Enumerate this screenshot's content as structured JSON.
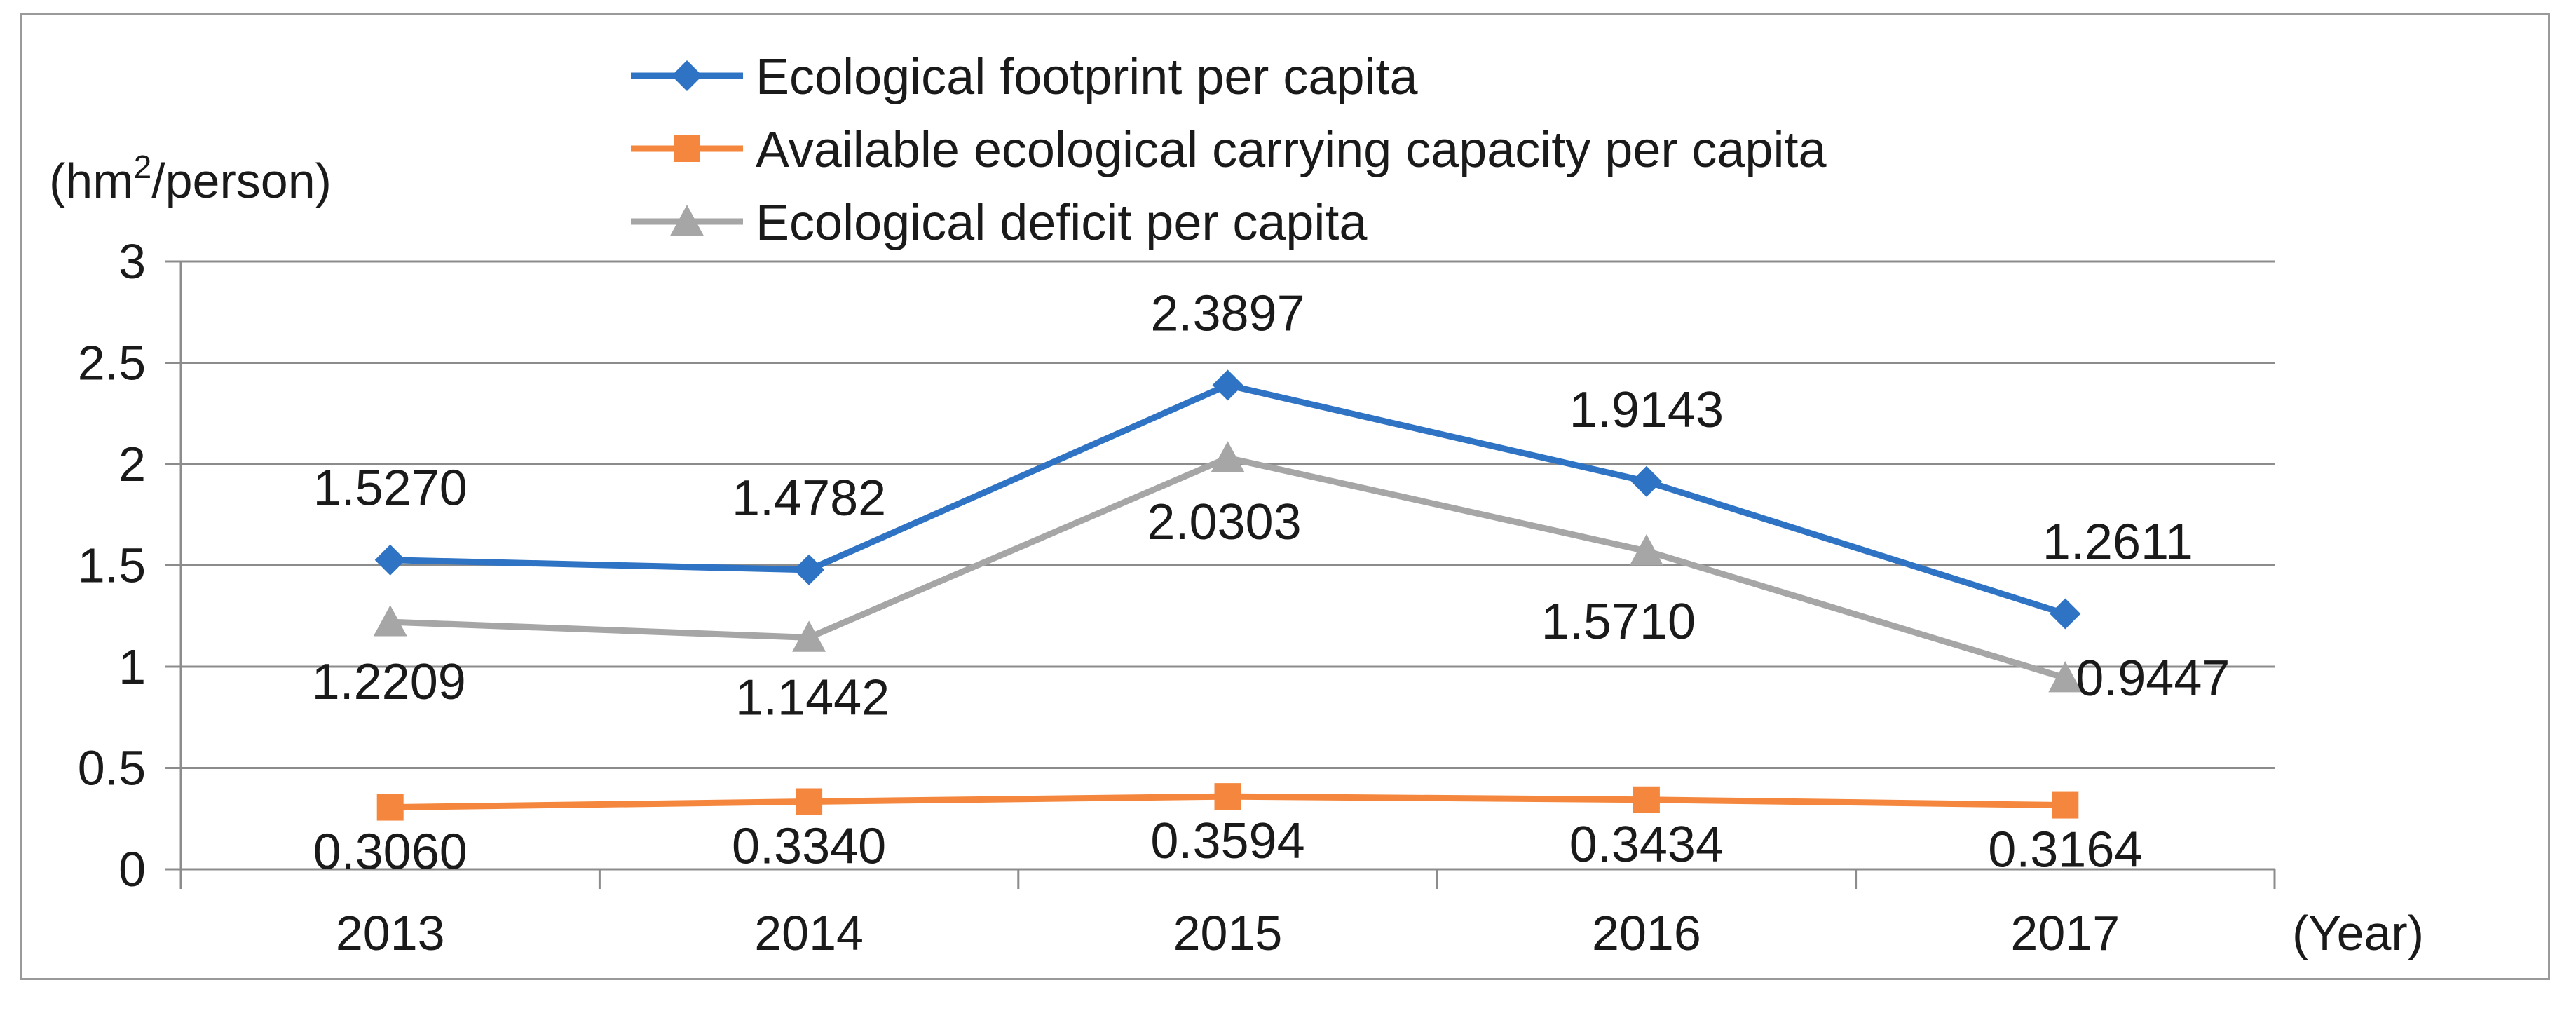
{
  "chart_data": {
    "type": "line",
    "title": "",
    "ylabel": "(hm²/person)",
    "ylabel_base": "(hm",
    "ylabel_sup": "2",
    "ylabel_tail": "/person)",
    "xlabel": "(Year)",
    "categories": [
      "2013",
      "2014",
      "2015",
      "2016",
      "2017"
    ],
    "ylim": [
      0,
      3
    ],
    "yticks": [
      0,
      0.5,
      1,
      1.5,
      2,
      2.5,
      3
    ],
    "ytick_labels": [
      "0",
      "0.5",
      "1",
      "1.5",
      "2",
      "2.5",
      "3"
    ],
    "grid": true,
    "legend_position": "top-center",
    "series": [
      {
        "name": "Ecological footprint per capita",
        "values": [
          1.527,
          1.4782,
          2.3897,
          1.9143,
          1.2611
        ],
        "labels": [
          "1.5270",
          "1.4782",
          "2.3897",
          "1.9143",
          "1.2611"
        ],
        "color": "#2f73c4",
        "marker": "diamond"
      },
      {
        "name": "Available ecological carrying capacity per capita",
        "values": [
          0.306,
          0.334,
          0.3594,
          0.3434,
          0.3164
        ],
        "labels": [
          "0.3060",
          "0.3340",
          "0.3594",
          "0.3434",
          "0.3164"
        ],
        "color": "#f4873d",
        "marker": "square"
      },
      {
        "name": "Ecological deficit per capita",
        "values": [
          1.2209,
          1.1442,
          2.0303,
          1.571,
          0.9447
        ],
        "labels": [
          "1.2209",
          "1.1442",
          "2.0303",
          "1.5710",
          "0.9447"
        ],
        "color": "#a6a6a6",
        "marker": "triangle"
      }
    ]
  }
}
